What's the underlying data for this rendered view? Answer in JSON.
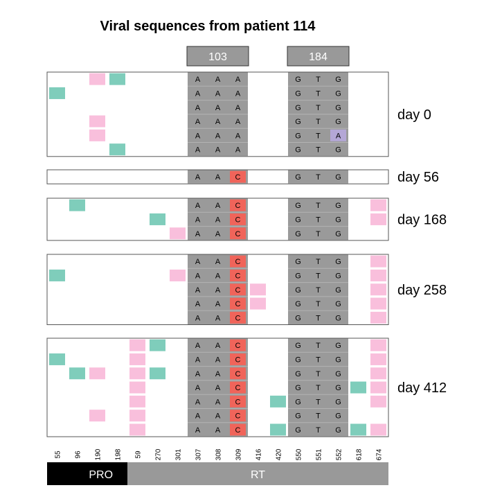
{
  "chart_data": {
    "type": "heatmap",
    "title": "Viral sequences from patient 114",
    "columns": [
      "55",
      "96",
      "190",
      "198",
      "59",
      "270",
      "301",
      "307",
      "308",
      "309",
      "416",
      "420",
      "550",
      "551",
      "552",
      "618",
      "674"
    ],
    "codon_headers": [
      {
        "label": "103",
        "columns": [
          "307",
          "308",
          "309"
        ]
      },
      {
        "label": "184",
        "columns": [
          "550",
          "551",
          "552"
        ]
      }
    ],
    "gene_regions": [
      {
        "label": "PRO",
        "columns": [
          "55",
          "96",
          "190",
          "198"
        ],
        "color": "#000000"
      },
      {
        "label": "RT",
        "columns": [
          "59",
          "270",
          "301",
          "307",
          "308",
          "309",
          "416",
          "420",
          "550",
          "551",
          "552",
          "618",
          "674"
        ],
        "color": "#999999"
      }
    ],
    "colors": {
      "teal": "#7fcdbb",
      "pink": "#f9bfdc",
      "red": "#f0645a",
      "purple": "#b4a7d6",
      "codon_gray": "#9a9a9a"
    },
    "timepoints": [
      {
        "label": "day 0",
        "rows": [
          {
            "marks": {
              "190": "pink",
              "198": "teal"
            },
            "bases": [
              "A",
              "A",
              "A",
              "G",
              "T",
              "G"
            ]
          },
          {
            "marks": {
              "55": "teal"
            },
            "bases": [
              "A",
              "A",
              "A",
              "G",
              "T",
              "G"
            ]
          },
          {
            "marks": {},
            "bases": [
              "A",
              "A",
              "A",
              "G",
              "T",
              "G"
            ]
          },
          {
            "marks": {
              "190": "pink"
            },
            "bases": [
              "A",
              "A",
              "A",
              "G",
              "T",
              "G"
            ]
          },
          {
            "marks": {
              "190": "pink",
              "552": "purple"
            },
            "bases": [
              "A",
              "A",
              "A",
              "G",
              "T",
              "A"
            ]
          },
          {
            "marks": {
              "198": "teal"
            },
            "bases": [
              "A",
              "A",
              "A",
              "G",
              "T",
              "G"
            ]
          }
        ]
      },
      {
        "label": "day 56",
        "rows": [
          {
            "marks": {
              "309": "red"
            },
            "bases": [
              "A",
              "A",
              "C",
              "G",
              "T",
              "G"
            ]
          }
        ]
      },
      {
        "label": "day 168",
        "rows": [
          {
            "marks": {
              "96": "teal",
              "309": "red",
              "674": "pink"
            },
            "bases": [
              "A",
              "A",
              "C",
              "G",
              "T",
              "G"
            ]
          },
          {
            "marks": {
              "270": "teal",
              "309": "red",
              "674": "pink"
            },
            "bases": [
              "A",
              "A",
              "C",
              "G",
              "T",
              "G"
            ]
          },
          {
            "marks": {
              "301": "pink",
              "309": "red"
            },
            "bases": [
              "A",
              "A",
              "C",
              "G",
              "T",
              "G"
            ]
          }
        ]
      },
      {
        "label": "day 258",
        "rows": [
          {
            "marks": {
              "309": "red",
              "674": "pink"
            },
            "bases": [
              "A",
              "A",
              "C",
              "G",
              "T",
              "G"
            ]
          },
          {
            "marks": {
              "55": "teal",
              "301": "pink",
              "309": "red",
              "674": "pink"
            },
            "bases": [
              "A",
              "A",
              "C",
              "G",
              "T",
              "G"
            ]
          },
          {
            "marks": {
              "309": "red",
              "416": "pink",
              "674": "pink"
            },
            "bases": [
              "A",
              "A",
              "C",
              "G",
              "T",
              "G"
            ]
          },
          {
            "marks": {
              "309": "red",
              "416": "pink",
              "674": "pink"
            },
            "bases": [
              "A",
              "A",
              "C",
              "G",
              "T",
              "G"
            ]
          },
          {
            "marks": {
              "309": "red",
              "674": "pink"
            },
            "bases": [
              "A",
              "A",
              "C",
              "G",
              "T",
              "G"
            ]
          }
        ]
      },
      {
        "label": "day 412",
        "rows": [
          {
            "marks": {
              "59": "pink",
              "270": "teal",
              "309": "red",
              "674": "pink"
            },
            "bases": [
              "A",
              "A",
              "C",
              "G",
              "T",
              "G"
            ]
          },
          {
            "marks": {
              "55": "teal",
              "59": "pink",
              "309": "red",
              "674": "pink"
            },
            "bases": [
              "A",
              "A",
              "C",
              "G",
              "T",
              "G"
            ]
          },
          {
            "marks": {
              "96": "teal",
              "190": "pink",
              "59": "pink",
              "270": "teal",
              "309": "red",
              "674": "pink"
            },
            "bases": [
              "A",
              "A",
              "C",
              "G",
              "T",
              "G"
            ]
          },
          {
            "marks": {
              "59": "pink",
              "309": "red",
              "618": "teal",
              "674": "pink"
            },
            "bases": [
              "A",
              "A",
              "C",
              "G",
              "T",
              "G"
            ]
          },
          {
            "marks": {
              "59": "pink",
              "309": "red",
              "420": "teal",
              "674": "pink"
            },
            "bases": [
              "A",
              "A",
              "C",
              "G",
              "T",
              "G"
            ]
          },
          {
            "marks": {
              "190": "pink",
              "59": "pink",
              "309": "red"
            },
            "bases": [
              "A",
              "A",
              "C",
              "G",
              "T",
              "G"
            ]
          },
          {
            "marks": {
              "59": "pink",
              "309": "red",
              "420": "teal",
              "618": "teal",
              "674": "pink"
            },
            "bases": [
              "A",
              "A",
              "C",
              "G",
              "T",
              "G"
            ]
          }
        ]
      }
    ]
  }
}
